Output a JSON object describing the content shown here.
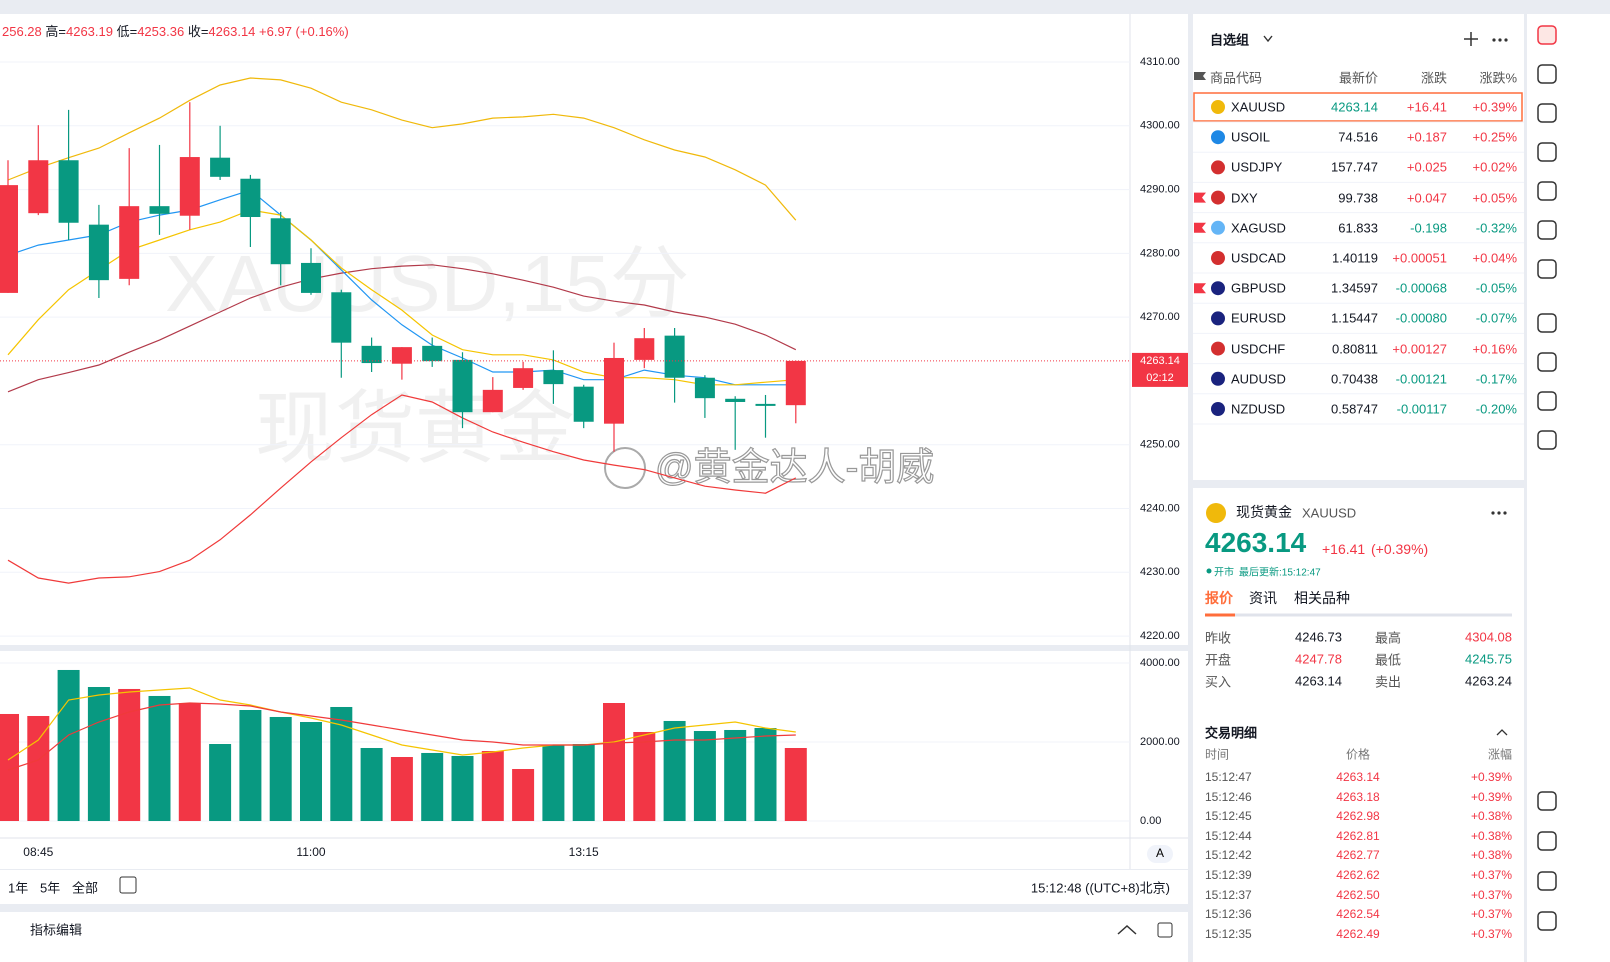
{
  "header": {
    "open": "256.28",
    "items": [
      {
        "label": "高=",
        "value": "4263.19"
      },
      {
        "label": "低=",
        "value": "4253.36"
      },
      {
        "label": "收=",
        "value": "4263.14"
      }
    ],
    "change": "+6.97 (+0.16%)"
  },
  "watermark": {
    "symbol": "XAUUSD,15分",
    "name": "现货黄金",
    "credit": "@黄金达人-胡威"
  },
  "chart_data": [
    {
      "type": "candlestick",
      "up_color": "#f23645",
      "down_color": "#089981",
      "grid": true,
      "ylim": [
        4218.6,
        4316.9
      ],
      "yticks": [
        {
          "value": 4220,
          "label": "4220.00"
        },
        {
          "value": 4230,
          "label": "4230.00"
        },
        {
          "value": 4240,
          "label": "4240.00"
        },
        {
          "value": 4250,
          "label": "4250.00"
        },
        {
          "value": 4270,
          "label": "4270.00"
        },
        {
          "value": 4280,
          "label": "4280.00"
        },
        {
          "value": 4290,
          "label": "4290.00"
        },
        {
          "value": 4300,
          "label": "4300.00"
        },
        {
          "value": 4310,
          "label": "4310.00"
        }
      ],
      "open": [
        4273.8,
        4286.3,
        4294.6,
        4284.5,
        4276.0,
        4287.4,
        4285.9,
        4295.0,
        4291.7,
        4285.5,
        4278.5,
        4273.9,
        4265.5,
        4262.7,
        4265.5,
        4263.3,
        4255.1,
        4258.9,
        4261.7,
        4259.1,
        4253.3,
        4263.3,
        4267.1,
        4260.5,
        4257.2,
        4256.4,
        4256.2
      ],
      "high": [
        4294.6,
        4300.1,
        4302.5,
        4287.6,
        4296.5,
        4297.0,
        4303.7,
        4300.0,
        4292.3,
        4286.5,
        4280.8,
        4274.3,
        4266.8,
        4265.3,
        4266.8,
        4264.5,
        4260.6,
        4263.0,
        4264.8,
        4259.4,
        4266.0,
        4268.3,
        4268.3,
        4260.9,
        4257.6,
        4257.8,
        4263.19
      ],
      "low": [
        4273.8,
        4286.0,
        4282.1,
        4273.0,
        4275.0,
        4282.9,
        4283.7,
        4291.5,
        4281.0,
        4275.0,
        4273.5,
        4260.5,
        4261.4,
        4260.2,
        4262.2,
        4252.6,
        4255.1,
        4258.6,
        4256.4,
        4252.6,
        4248.9,
        4262.0,
        4256.6,
        4254.2,
        4249.2,
        4251.1,
        4253.36
      ],
      "close": [
        4290.7,
        4294.6,
        4284.8,
        4275.8,
        4287.4,
        4286.2,
        4295.1,
        4292.0,
        4285.7,
        4278.3,
        4273.8,
        4266.0,
        4262.8,
        4265.3,
        4263.1,
        4255.1,
        4258.6,
        4262.0,
        4259.5,
        4253.6,
        4263.6,
        4266.7,
        4260.5,
        4257.3,
        4256.7,
        4256.1,
        4263.14
      ],
      "series": [
        {
          "color": "#f0b90b",
          "values": [
            4291.5,
            4293.4,
            4295.0,
            4296.5,
            4298.9,
            4301.2,
            4304.0,
            4306.4,
            4307.5,
            4307.2,
            4305.9,
            4303.7,
            4302.5,
            4300.9,
            4299.7,
            4300.3,
            4301.2,
            4301.4,
            4301.8,
            4301.2,
            4299.7,
            4297.8,
            4296.2,
            4295.1,
            4293.1,
            4290.7,
            4285.2
          ]
        },
        {
          "color": "#b23a4a",
          "values": [
            4258.3,
            4260.2,
            4261.3,
            4262.5,
            4264.5,
            4266.4,
            4268.6,
            4270.8,
            4273.0,
            4274.7,
            4276.0,
            4276.9,
            4277.6,
            4278.0,
            4278.2,
            4277.6,
            4276.8,
            4275.8,
            4274.7,
            4273.3,
            4272.5,
            4271.9,
            4270.8,
            4270.0,
            4268.9,
            4267.2,
            4264.9
          ]
        },
        {
          "color": "#f03a3a",
          "values": [
            4231.9,
            4229.1,
            4228.3,
            4229.1,
            4229.3,
            4230.1,
            4231.9,
            4235.1,
            4239.0,
            4243.2,
            4247.3,
            4251.1,
            4254.7,
            4257.8,
            4256.7,
            4254.2,
            4252.0,
            4250.4,
            4248.9,
            4247.6,
            4246.8,
            4246.1,
            4244.8,
            4243.5,
            4242.9,
            4242.4,
            4244.8
          ]
        },
        {
          "color": "#2196f3",
          "values": [
            4279.7,
            4281.3,
            4282.1,
            4282.9,
            4284.9,
            4286.0,
            4286.8,
            4288.4,
            4289.9,
            4286.0,
            4282.1,
            4277.4,
            4272.7,
            4268.8,
            4265.6,
            4263.6,
            4261.4,
            4261.4,
            4261.7,
            4260.2,
            4260.2,
            4261.7,
            4260.9,
            4260.5,
            4259.4,
            4259.4,
            4259.4
          ]
        },
        {
          "color": "#f5c400",
          "values": [
            4264.1,
            4269.6,
            4274.3,
            4277.4,
            4280.5,
            4282.1,
            4283.7,
            4284.9,
            4286.8,
            4286.0,
            4282.1,
            4277.7,
            4274.3,
            4271.1,
            4267.2,
            4264.9,
            4264.1,
            4264.1,
            4263.3,
            4261.4,
            4260.5,
            4260.5,
            4260.2,
            4259.4,
            4259.4,
            4259.8,
            4260.2
          ]
        }
      ],
      "last_price": 4263.14,
      "countdown": "02:12"
    },
    {
      "type": "bar",
      "ylim": [
        0,
        4278
      ],
      "yticks": [
        {
          "value": 0,
          "label": "0.00"
        },
        {
          "value": 2000,
          "label": "2000.00"
        },
        {
          "value": 4000,
          "label": "4000.00"
        }
      ],
      "categories": [
        null,
        "08:45",
        null,
        null,
        null,
        null,
        null,
        null,
        null,
        null,
        "11:00",
        null,
        null,
        null,
        null,
        null,
        null,
        null,
        null,
        "13:15",
        null,
        null,
        null,
        null,
        null,
        null,
        null
      ],
      "values": [
        2709,
        2658,
        3823,
        3392,
        3342,
        3165,
        2987,
        1949,
        2810,
        2633,
        2506,
        2886,
        1848,
        1620,
        1722,
        1646,
        1772,
        1316,
        1924,
        1949,
        2987,
        2253,
        2532,
        2278,
        2304,
        2354,
        1848
      ],
      "series": [
        {
          "color": "#f5c400",
          "values": [
            1544,
            2051,
            3063,
            3190,
            3266,
            3316,
            3367,
            3063,
            2937,
            2759,
            2608,
            2430,
            2177,
            1924,
            1797,
            1671,
            1747,
            1848,
            1924,
            1924,
            2000,
            2177,
            2354,
            2430,
            2506,
            2354,
            2253
          ]
        },
        {
          "color": "#f03a3a",
          "values": [
            1291,
            1544,
            2177,
            2506,
            2759,
            2937,
            2987,
            2962,
            2911,
            2759,
            2658,
            2557,
            2430,
            2304,
            2177,
            2051,
            2000,
            1924,
            1924,
            1924,
            1975,
            2000,
            2051,
            2051,
            2101,
            2152,
            2177
          ]
        }
      ]
    }
  ],
  "toolbar": {
    "ranges": [
      "1年",
      "5年",
      "全部"
    ],
    "clock": "15:12:48 ((UTC+8)北京)",
    "axis_mode": "A",
    "footer": "指标编辑"
  },
  "watchlist": {
    "title": "自选组",
    "columns": [
      "商品代码",
      "最新价",
      "涨跌",
      "涨跌%"
    ],
    "rows": [
      {
        "symbol": "XAUUSD",
        "price": "4263.14",
        "change": "+16.41",
        "pct": "+0.39%"
      },
      {
        "symbol": "USOIL",
        "price": "74.516",
        "change": "+0.187",
        "pct": "+0.25%"
      },
      {
        "symbol": "USDJPY",
        "price": "157.747",
        "change": "+0.025",
        "pct": "+0.02%"
      },
      {
        "symbol": "DXY",
        "price": "99.738",
        "change": "+0.047",
        "pct": "+0.05%",
        "flag": true
      },
      {
        "symbol": "XAGUSD",
        "price": "61.833",
        "change": "-0.198",
        "pct": "-0.32%",
        "flag": true
      },
      {
        "symbol": "USDCAD",
        "price": "1.40119",
        "change": "+0.00051",
        "pct": "+0.04%"
      },
      {
        "symbol": "GBPUSD",
        "price": "1.34597",
        "change": "-0.00068",
        "pct": "-0.05%",
        "flag": true
      },
      {
        "symbol": "EURUSD",
        "price": "1.15447",
        "change": "-0.00080",
        "pct": "-0.07%"
      },
      {
        "symbol": "USDCHF",
        "price": "0.80811",
        "change": "+0.00127",
        "pct": "+0.16%"
      },
      {
        "symbol": "AUDUSD",
        "price": "0.70438",
        "change": "-0.00121",
        "pct": "-0.17%"
      },
      {
        "symbol": "NZDUSD",
        "price": "0.58747",
        "change": "-0.00117",
        "pct": "-0.20%"
      }
    ]
  },
  "detail": {
    "name": "现货黄金",
    "symbol": "XAUUSD",
    "price": "4263.14",
    "change": "+16.41",
    "pct": "(+0.39%)",
    "status": "开市",
    "updated": "最后更新:15:12:47",
    "tabs": [
      "报价",
      "资讯",
      "相关品种"
    ],
    "stats": [
      {
        "label": "昨收",
        "value": "4246.73",
        "color": "#131722"
      },
      {
        "label": "最高",
        "value": "4304.08",
        "color": "#f23645"
      },
      {
        "label": "开盘",
        "value": "4247.78",
        "color": "#f23645"
      },
      {
        "label": "最低",
        "value": "4245.75",
        "color": "#089981"
      },
      {
        "label": "买入",
        "value": "4263.14",
        "color": "#131722"
      },
      {
        "label": "卖出",
        "value": "4263.24",
        "color": "#131722"
      }
    ]
  },
  "trades": {
    "title": "交易明细",
    "columns": [
      "时间",
      "价格",
      "涨幅"
    ],
    "rows": [
      [
        "15:12:47",
        "4263.14",
        "+0.39%"
      ],
      [
        "15:12:46",
        "4263.18",
        "+0.39%"
      ],
      [
        "15:12:45",
        "4262.98",
        "+0.38%"
      ],
      [
        "15:12:44",
        "4262.81",
        "+0.38%"
      ],
      [
        "15:12:42",
        "4262.77",
        "+0.38%"
      ],
      [
        "15:12:39",
        "4262.62",
        "+0.37%"
      ],
      [
        "15:12:37",
        "4262.50",
        "+0.37%"
      ],
      [
        "15:12:36",
        "4262.54",
        "+0.37%"
      ],
      [
        "15:12:35",
        "4262.49",
        "+0.37%"
      ]
    ]
  }
}
